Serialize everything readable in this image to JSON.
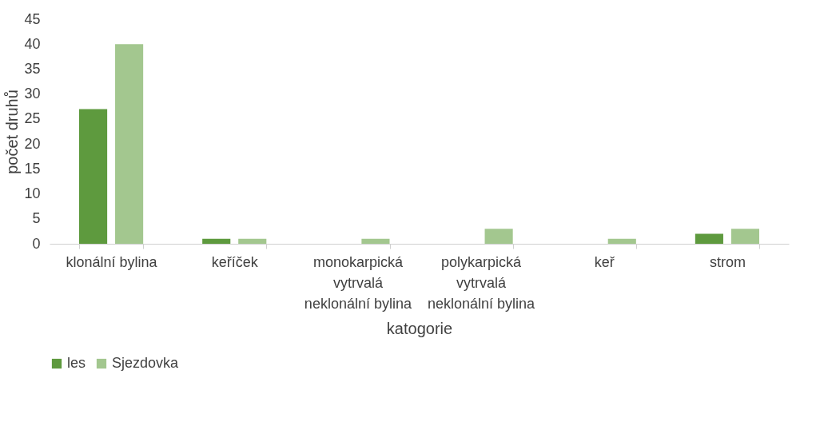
{
  "chart_data": {
    "type": "bar",
    "xlabel": "katogorie",
    "ylabel": "počet druhů",
    "categories": [
      "klonální bylina",
      "keříček",
      "monokarpická vytrvalá neklonální bylina",
      "polykarpická vytrvalá neklonální bylina",
      "keř",
      "strom"
    ],
    "series": [
      {
        "name": "les",
        "color": "#5e9a3e",
        "values": [
          27,
          1,
          0,
          0,
          0,
          2
        ]
      },
      {
        "name": "Sjezdovka",
        "color": "#a3c78f",
        "values": [
          40,
          1,
          1,
          3,
          1,
          3
        ]
      }
    ],
    "ylim": [
      0,
      45
    ],
    "yticks": [
      0,
      5,
      10,
      15,
      20,
      25,
      30,
      35,
      40,
      45
    ],
    "grid": false,
    "legend": "bottom"
  }
}
